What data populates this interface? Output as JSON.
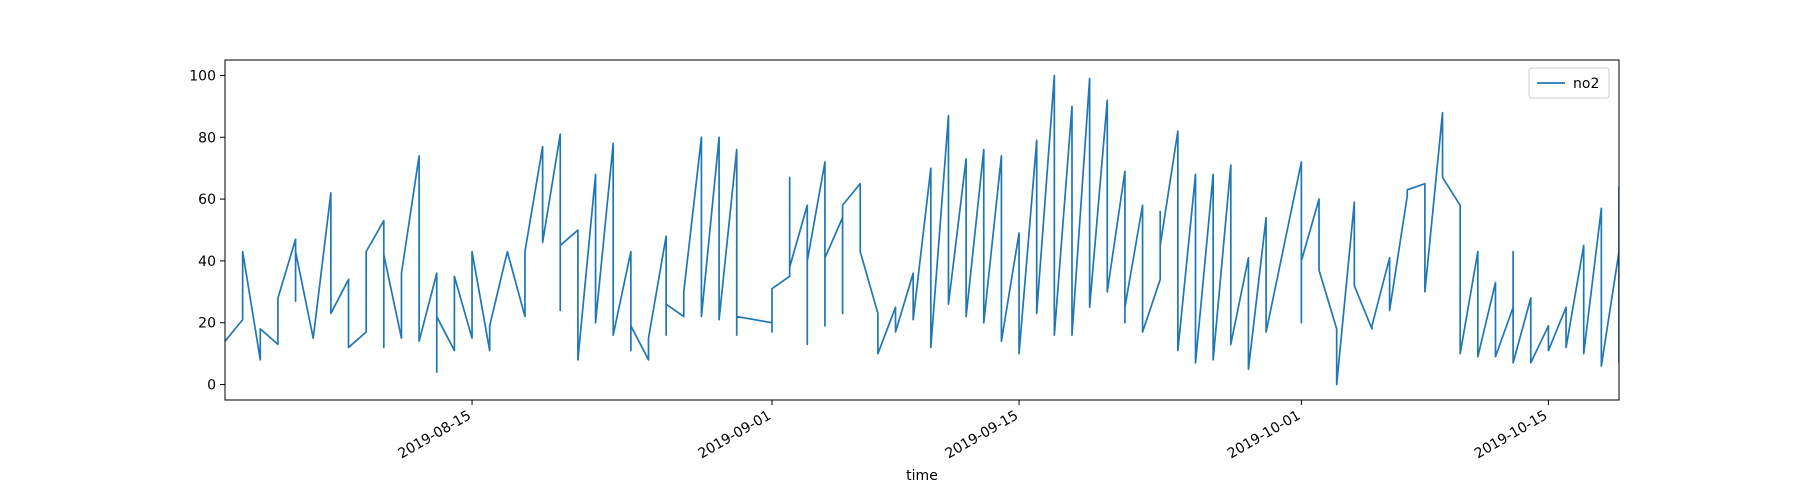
{
  "chart_data": {
    "type": "line",
    "xlabel": "time",
    "x": [
      "2019-08-01",
      "2019-08-02",
      "2019-08-02",
      "2019-08-03",
      "2019-08-03",
      "2019-08-04",
      "2019-08-04",
      "2019-08-05",
      "2019-08-05",
      "2019-08-05",
      "2019-08-06",
      "2019-08-07",
      "2019-08-07",
      "2019-08-08",
      "2019-08-08",
      "2019-08-09",
      "2019-08-09",
      "2019-08-10",
      "2019-08-10",
      "2019-08-10",
      "2019-08-11",
      "2019-08-11",
      "2019-08-12",
      "2019-08-12",
      "2019-08-13",
      "2019-08-13",
      "2019-08-13",
      "2019-08-14",
      "2019-08-14",
      "2019-08-15",
      "2019-08-15",
      "2019-08-16",
      "2019-08-16",
      "2019-08-17",
      "2019-08-18",
      "2019-08-18",
      "2019-08-19",
      "2019-08-19",
      "2019-08-20",
      "2019-08-20",
      "2019-08-20",
      "2019-08-21",
      "2019-08-21",
      "2019-08-22",
      "2019-08-22",
      "2019-08-23",
      "2019-08-23",
      "2019-08-24",
      "2019-08-24",
      "2019-08-24",
      "2019-08-25",
      "2019-08-25",
      "2019-08-26",
      "2019-08-26",
      "2019-08-26",
      "2019-08-27",
      "2019-08-27",
      "2019-08-28",
      "2019-08-28",
      "2019-08-29",
      "2019-08-29",
      "2019-08-30",
      "2019-08-30",
      "2019-08-30",
      "2019-09-01",
      "2019-09-01",
      "2019-09-01",
      "2019-09-02",
      "2019-09-02",
      "2019-09-02",
      "2019-09-03",
      "2019-09-03",
      "2019-09-03",
      "2019-09-04",
      "2019-09-04",
      "2019-09-04",
      "2019-09-05",
      "2019-09-05",
      "2019-09-05",
      "2019-09-06",
      "2019-09-06",
      "2019-09-07",
      "2019-09-07",
      "2019-09-08",
      "2019-09-08",
      "2019-09-09",
      "2019-09-09",
      "2019-09-10",
      "2019-09-10",
      "2019-09-11",
      "2019-09-11",
      "2019-09-12",
      "2019-09-12",
      "2019-09-13",
      "2019-09-13",
      "2019-09-14",
      "2019-09-14",
      "2019-09-15",
      "2019-09-15",
      "2019-09-16",
      "2019-09-16",
      "2019-09-17",
      "2019-09-17",
      "2019-09-18",
      "2019-09-18",
      "2019-09-19",
      "2019-09-19",
      "2019-09-20",
      "2019-09-20",
      "2019-09-21",
      "2019-09-21",
      "2019-09-21",
      "2019-09-22",
      "2019-09-22",
      "2019-09-23",
      "2019-09-23",
      "2019-09-23",
      "2019-09-24",
      "2019-09-24",
      "2019-09-25",
      "2019-09-25",
      "2019-09-26",
      "2019-09-26",
      "2019-09-27",
      "2019-09-27",
      "2019-09-28",
      "2019-09-28",
      "2019-09-29",
      "2019-09-29",
      "2019-10-01",
      "2019-10-01",
      "2019-10-01",
      "2019-10-02",
      "2019-10-02",
      "2019-10-03",
      "2019-10-03",
      "2019-10-04",
      "2019-10-04",
      "2019-10-05",
      "2019-10-05",
      "2019-10-06",
      "2019-10-06",
      "2019-10-07",
      "2019-10-07",
      "2019-10-08",
      "2019-10-08",
      "2019-10-09",
      "2019-10-09",
      "2019-10-10",
      "2019-10-10",
      "2019-10-11",
      "2019-10-11",
      "2019-10-12",
      "2019-10-12",
      "2019-10-13",
      "2019-10-13",
      "2019-10-13",
      "2019-10-14",
      "2019-10-14",
      "2019-10-15",
      "2019-10-15",
      "2019-10-16",
      "2019-10-16",
      "2019-10-17",
      "2019-10-17",
      "2019-10-18",
      "2019-10-18",
      "2019-10-19",
      "2019-10-19",
      "2019-10-19"
    ],
    "series": [
      {
        "name": "no2",
        "color": "#1f77b4",
        "values": [
          14,
          21,
          43,
          8,
          18,
          13,
          28,
          47,
          27,
          43,
          15,
          62,
          23,
          34,
          12,
          17,
          43,
          53,
          12,
          42,
          15,
          36,
          74,
          14,
          36,
          4,
          22,
          11,
          35,
          15,
          43,
          11,
          19,
          43,
          22,
          43,
          77,
          46,
          81,
          24,
          45,
          50,
          8,
          68,
          20,
          78,
          16,
          43,
          11,
          19,
          8,
          15,
          48,
          16,
          26,
          22,
          30,
          80,
          22,
          80,
          21,
          76,
          16,
          22,
          20,
          17,
          31,
          35,
          67,
          38,
          58,
          13,
          40,
          72,
          19,
          41,
          54,
          23,
          58,
          65,
          43,
          23,
          10,
          25,
          17,
          36,
          21,
          70,
          12,
          87,
          26,
          73,
          22,
          76,
          20,
          74,
          14,
          49,
          10,
          79,
          23,
          100,
          16,
          90,
          16,
          99,
          25,
          92,
          30,
          69,
          20,
          25,
          58,
          17,
          34,
          56,
          45,
          82,
          11,
          68,
          7,
          68,
          8,
          71,
          13,
          41,
          5,
          54,
          17,
          72,
          20,
          40,
          60,
          37,
          18,
          0,
          59,
          32,
          18,
          19,
          41,
          24,
          61,
          63,
          65,
          30,
          88,
          67,
          58,
          10,
          43,
          9,
          33,
          9,
          25,
          43,
          7,
          28,
          7,
          19,
          11,
          25,
          12,
          45,
          10,
          57,
          6,
          43,
          64,
          7
        ]
      }
    ],
    "xlim": [
      "2019-08-01",
      "2019-10-19"
    ],
    "xticks": [
      "2019-08-15",
      "2019-09-01",
      "2019-09-15",
      "2019-10-01",
      "2019-10-15"
    ],
    "ylim": [
      -5,
      105
    ],
    "yticks": [
      0,
      20,
      40,
      60,
      80,
      100
    ],
    "legend": "upper right"
  }
}
